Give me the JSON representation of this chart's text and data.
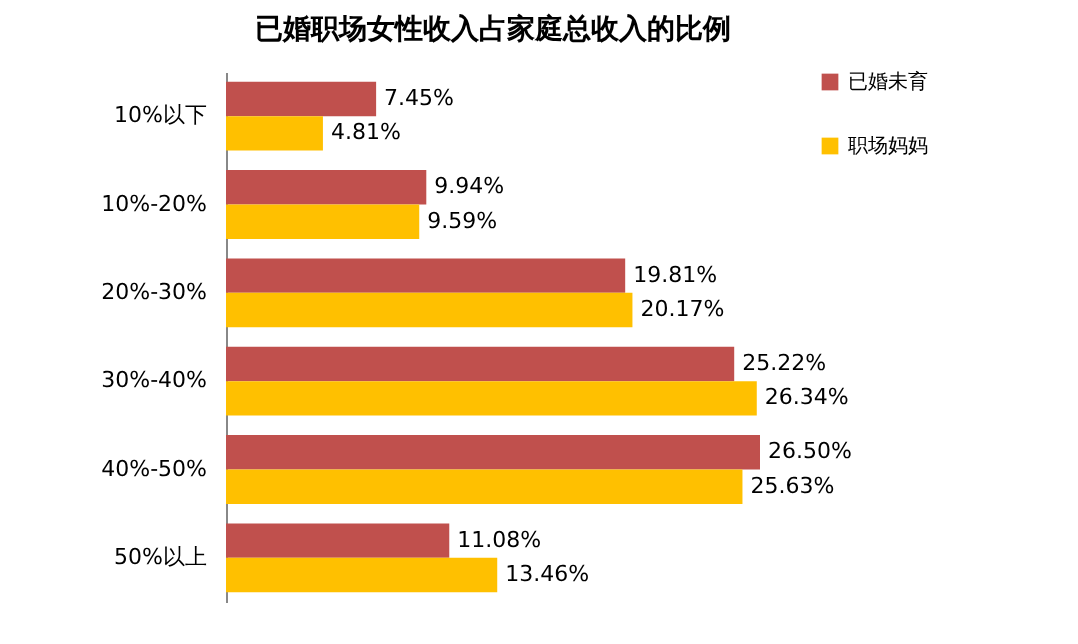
{
  "chart_data": {
    "type": "bar",
    "orientation": "horizontal",
    "title": "已婚职场女性收入占家庭总收入的比例",
    "categories": [
      "10%以下",
      "10%-20%",
      "20%-30%",
      "30%-40%",
      "40%-50%",
      "50%以上"
    ],
    "series": [
      {
        "name": "已婚未育",
        "color": "#c0504d",
        "values": [
          7.45,
          9.94,
          19.81,
          25.22,
          26.5,
          11.08
        ],
        "value_labels": [
          "7.45%",
          "9.94%",
          "19.81%",
          "25.22%",
          "26.50%",
          "11.08%"
        ]
      },
      {
        "name": "职场妈妈",
        "color": "#ffc000",
        "values": [
          4.81,
          9.59,
          20.17,
          26.34,
          25.63,
          13.46
        ],
        "value_labels": [
          "4.81%",
          "9.59%",
          "20.17%",
          "26.34%",
          "25.63%",
          "13.46%"
        ]
      }
    ],
    "legend": "right"
  }
}
